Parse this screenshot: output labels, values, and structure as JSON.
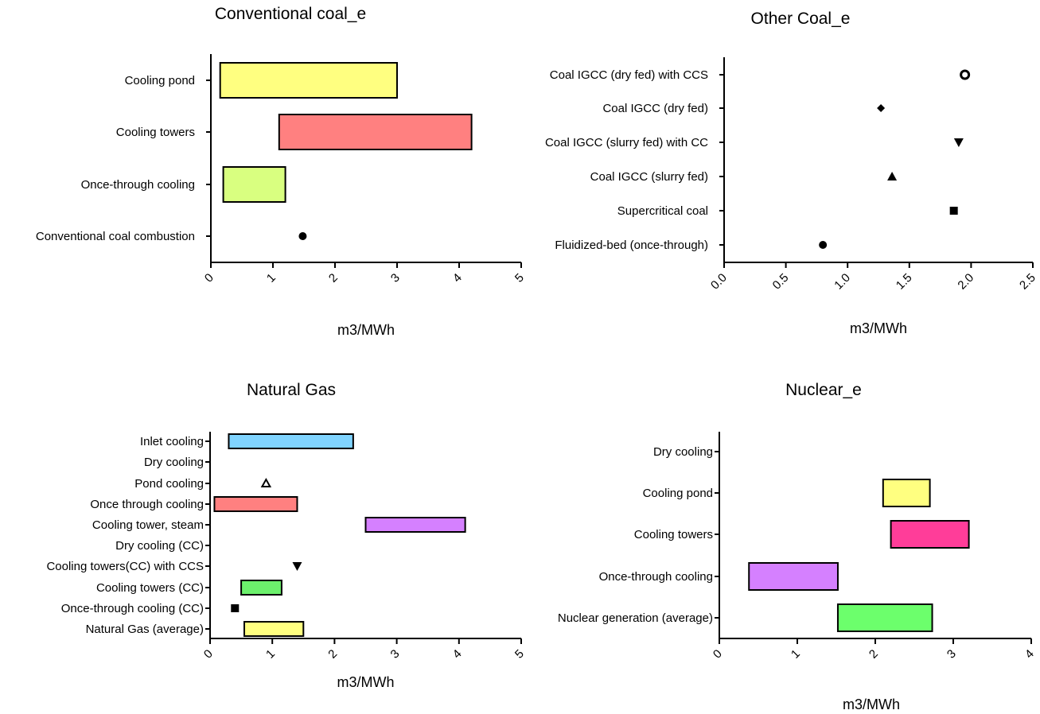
{
  "chart_data": [
    {
      "type": "bar",
      "orientation": "horizontal-floating",
      "title": "Conventional coal_e",
      "xlabel": "m3/MWh",
      "xlim": [
        0,
        5
      ],
      "xticks": [
        "0",
        "1",
        "2",
        "3",
        "4",
        "5"
      ],
      "categories": [
        "Cooling pond",
        "Cooling towers",
        "Once-through cooling",
        "Conventional coal combustion"
      ],
      "ranges": [
        {
          "category": "Cooling pond",
          "min": 0.15,
          "max": 3.0,
          "color": "#FFFF80"
        },
        {
          "category": "Cooling towers",
          "min": 1.1,
          "max": 4.2,
          "color": "#FF8080"
        },
        {
          "category": "Once-through cooling",
          "min": 0.2,
          "max": 1.2,
          "color": "#D9FF80"
        }
      ],
      "points": [
        {
          "category": "Conventional coal combustion",
          "value": 1.48,
          "marker": "circle"
        }
      ]
    },
    {
      "type": "scatter",
      "title": "Other Coal_e",
      "xlabel": "m3/MWh",
      "xlim": [
        0,
        2.5
      ],
      "xticks": [
        "0.0",
        "0.5",
        "1.0",
        "1.5",
        "2.0",
        "2.5"
      ],
      "categories": [
        "Coal IGCC (dry fed) with CCS",
        "Coal IGCC (dry fed)",
        "Coal IGCC (slurry fed) with CC",
        "Coal IGCC (slurry fed)",
        "Supercritical coal",
        "Fluidized-bed (once-through)"
      ],
      "points": [
        {
          "category": "Coal IGCC (dry fed) with CCS",
          "value": 1.95,
          "marker": "open-circle"
        },
        {
          "category": "Coal IGCC (dry fed)",
          "value": 1.27,
          "marker": "diamond"
        },
        {
          "category": "Coal IGCC (slurry fed) with CC",
          "value": 1.9,
          "marker": "triangle-down"
        },
        {
          "category": "Coal IGCC (slurry fed)",
          "value": 1.36,
          "marker": "triangle-up"
        },
        {
          "category": "Supercritical coal",
          "value": 1.86,
          "marker": "square"
        },
        {
          "category": "Fluidized-bed (once-through)",
          "value": 0.8,
          "marker": "circle"
        }
      ]
    },
    {
      "type": "bar",
      "orientation": "horizontal-floating",
      "title": "Natural Gas",
      "xlabel": "m3/MWh",
      "xlim": [
        0,
        5
      ],
      "xticks": [
        "0",
        "1",
        "2",
        "3",
        "4",
        "5"
      ],
      "categories": [
        "Inlet cooling",
        "Dry cooling",
        "Pond cooling",
        "Once through cooling",
        "Cooling tower, steam",
        "Dry cooling (CC)",
        "Cooling towers(CC) with CCS",
        "Cooling towers (CC)",
        "Once-through cooling (CC)",
        "Natural Gas (average)"
      ],
      "ranges": [
        {
          "category": "Inlet cooling",
          "min": 0.3,
          "max": 2.3,
          "color": "#80D4FF"
        },
        {
          "category": "Once through cooling",
          "min": 0.07,
          "max": 1.4,
          "color": "#FF8080"
        },
        {
          "category": "Cooling tower, steam",
          "min": 2.5,
          "max": 4.1,
          "color": "#D580FF"
        },
        {
          "category": "Cooling towers (CC)",
          "min": 0.5,
          "max": 1.15,
          "color": "#6CF06C"
        },
        {
          "category": "Natural Gas (average)",
          "min": 0.55,
          "max": 1.5,
          "color": "#FFFF80"
        }
      ],
      "points": [
        {
          "category": "Pond cooling",
          "value": 0.9,
          "marker": "open-triangle-up"
        },
        {
          "category": "Cooling towers(CC) with CCS",
          "value": 1.4,
          "marker": "triangle-down"
        },
        {
          "category": "Once-through cooling (CC)",
          "value": 0.4,
          "marker": "square"
        }
      ]
    },
    {
      "type": "bar",
      "orientation": "horizontal-floating",
      "title": "Nuclear_e",
      "xlabel": "m3/MWh",
      "xlim": [
        0,
        4
      ],
      "xticks": [
        "0",
        "1",
        "2",
        "3",
        "4"
      ],
      "categories": [
        "Dry cooling",
        "Cooling pond",
        "Cooling towers",
        "Once-through cooling",
        "Nuclear generation (average)"
      ],
      "ranges": [
        {
          "category": "Cooling pond",
          "min": 2.1,
          "max": 2.7,
          "color": "#FFFF80"
        },
        {
          "category": "Cooling towers",
          "min": 2.2,
          "max": 3.2,
          "color": "#FF3D99"
        },
        {
          "category": "Once-through cooling",
          "min": 0.38,
          "max": 1.52,
          "color": "#D580FF"
        },
        {
          "category": "Nuclear generation (average)",
          "min": 1.52,
          "max": 2.73,
          "color": "#6CFF6C"
        }
      ],
      "points": []
    }
  ]
}
